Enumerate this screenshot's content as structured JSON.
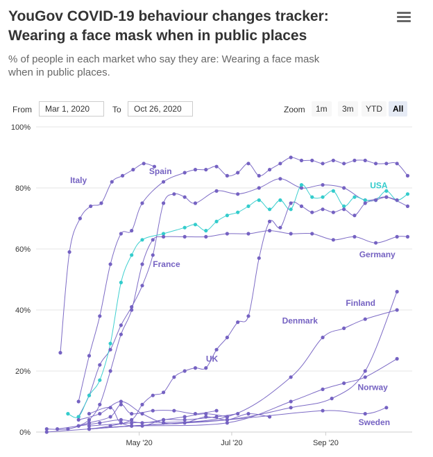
{
  "header": {
    "title_line1": "YouGov COVID-19 behaviour changes tracker:",
    "title_line2": "Wearing a face mask when in public places",
    "subtitle_line1": "% of people in each market who say they are: Wearing a face mask",
    "subtitle_line2": "when in public places."
  },
  "controls": {
    "from_label": "From",
    "from_value": "Mar 1, 2020",
    "to_label": "To",
    "to_value": "Oct 26, 2020",
    "zoom_label": "Zoom",
    "zoom_buttons": [
      "1m",
      "3m",
      "YTD",
      "All"
    ],
    "zoom_active": "All"
  },
  "colors": {
    "purple": "#7562c2",
    "teal": "#33cccc",
    "grid": "#e6e6e6"
  },
  "chart_data": {
    "type": "line",
    "title": "YouGov COVID-19 behaviour changes tracker: Wearing a face mask when in public places",
    "subtitle": "% of people in each market who say they are: Wearing a face mask when in public places.",
    "xlabel": "",
    "ylabel": "",
    "xlim": [
      "2020-02-23",
      "2020-10-28"
    ],
    "ylim": [
      0,
      100
    ],
    "y_ticks": [
      0,
      20,
      40,
      60,
      80,
      100
    ],
    "y_tick_labels": [
      "0%",
      "20%",
      "40%",
      "60%",
      "80%",
      "100%"
    ],
    "x_ticks": [
      "2020-05-01",
      "2020-07-01",
      "2020-09-01"
    ],
    "x_tick_labels": [
      "May '20",
      "Jul '20",
      "Sep '20"
    ],
    "grid": true,
    "legend": "inline labels",
    "series": [
      {
        "name": "Italy",
        "color": "#7562c2",
        "label_at": [
          "2020-03-22",
          82.5
        ],
        "points": [
          [
            "2020-03-10",
            26
          ],
          [
            "2020-03-16",
            59
          ],
          [
            "2020-03-23",
            70
          ],
          [
            "2020-03-30",
            74
          ],
          [
            "2020-04-06",
            75
          ],
          [
            "2020-04-13",
            82
          ],
          [
            "2020-04-20",
            84
          ],
          [
            "2020-04-27",
            86
          ],
          [
            "2020-05-04",
            88
          ],
          [
            "2020-05-11",
            87
          ]
        ]
      },
      {
        "name": "Spain",
        "color": "#7562c2",
        "label_at": [
          "2020-05-15",
          85.5
        ],
        "points": [
          [
            "2020-03-22",
            10
          ],
          [
            "2020-03-29",
            25
          ],
          [
            "2020-04-05",
            38
          ],
          [
            "2020-04-12",
            55
          ],
          [
            "2020-04-19",
            65
          ],
          [
            "2020-04-26",
            66
          ],
          [
            "2020-05-03",
            75
          ],
          [
            "2020-05-17",
            82
          ],
          [
            "2020-05-31",
            85
          ],
          [
            "2020-06-07",
            86
          ],
          [
            "2020-06-14",
            86
          ],
          [
            "2020-06-21",
            87
          ],
          [
            "2020-06-28",
            84
          ],
          [
            "2020-07-05",
            85
          ],
          [
            "2020-07-12",
            88
          ],
          [
            "2020-07-19",
            84
          ],
          [
            "2020-07-26",
            86
          ],
          [
            "2020-08-02",
            88
          ],
          [
            "2020-08-09",
            90
          ],
          [
            "2020-08-16",
            89
          ],
          [
            "2020-08-23",
            89
          ],
          [
            "2020-08-30",
            88
          ],
          [
            "2020-09-06",
            89
          ],
          [
            "2020-09-13",
            88
          ],
          [
            "2020-09-20",
            89
          ],
          [
            "2020-09-27",
            89
          ],
          [
            "2020-10-04",
            88
          ],
          [
            "2020-10-11",
            88
          ],
          [
            "2020-10-18",
            88
          ],
          [
            "2020-10-25",
            84
          ]
        ]
      },
      {
        "name": "France",
        "color": "#7562c2",
        "label_at": [
          "2020-05-19",
          55
        ],
        "points": [
          [
            "2020-03-22",
            5
          ],
          [
            "2020-03-29",
            12
          ],
          [
            "2020-04-05",
            22
          ],
          [
            "2020-04-12",
            27
          ],
          [
            "2020-04-19",
            35
          ],
          [
            "2020-04-26",
            41
          ],
          [
            "2020-05-03",
            48
          ],
          [
            "2020-05-10",
            58
          ],
          [
            "2020-05-17",
            75
          ],
          [
            "2020-05-24",
            78
          ],
          [
            "2020-05-31",
            77
          ],
          [
            "2020-06-07",
            75
          ],
          [
            "2020-06-21",
            79
          ],
          [
            "2020-07-05",
            78
          ],
          [
            "2020-07-19",
            80
          ],
          [
            "2020-08-02",
            83
          ],
          [
            "2020-08-16",
            80
          ],
          [
            "2020-08-30",
            81
          ],
          [
            "2020-09-13",
            80
          ],
          [
            "2020-09-27",
            76
          ],
          [
            "2020-10-11",
            77
          ],
          [
            "2020-10-25",
            74
          ]
        ]
      },
      {
        "name": "USA",
        "color": "#33cccc",
        "label_at": [
          "2020-10-06",
          80.8
        ],
        "points": [
          [
            "2020-03-15",
            6
          ],
          [
            "2020-03-22",
            5
          ],
          [
            "2020-03-29",
            12
          ],
          [
            "2020-04-05",
            17
          ],
          [
            "2020-04-12",
            29
          ],
          [
            "2020-04-19",
            49
          ],
          [
            "2020-04-26",
            58
          ],
          [
            "2020-05-03",
            63
          ],
          [
            "2020-05-17",
            65
          ],
          [
            "2020-05-31",
            67
          ],
          [
            "2020-06-07",
            68
          ],
          [
            "2020-06-14",
            66
          ],
          [
            "2020-06-21",
            69
          ],
          [
            "2020-06-28",
            71
          ],
          [
            "2020-07-05",
            72
          ],
          [
            "2020-07-12",
            74
          ],
          [
            "2020-07-19",
            76
          ],
          [
            "2020-07-26",
            73
          ],
          [
            "2020-08-02",
            76
          ],
          [
            "2020-08-09",
            73
          ],
          [
            "2020-08-16",
            81
          ],
          [
            "2020-08-23",
            77
          ],
          [
            "2020-08-30",
            77
          ],
          [
            "2020-09-06",
            79
          ],
          [
            "2020-09-13",
            74
          ],
          [
            "2020-09-20",
            77
          ],
          [
            "2020-09-27",
            76
          ],
          [
            "2020-10-04",
            76
          ],
          [
            "2020-10-11",
            79
          ],
          [
            "2020-10-18",
            76
          ],
          [
            "2020-10-25",
            78
          ]
        ]
      },
      {
        "name": "Germany",
        "color": "#7562c2",
        "label_at": [
          "2020-10-05",
          58.2
        ],
        "points": [
          [
            "2020-03-22",
            2
          ],
          [
            "2020-03-29",
            4
          ],
          [
            "2020-04-05",
            9
          ],
          [
            "2020-04-12",
            20
          ],
          [
            "2020-04-19",
            32
          ],
          [
            "2020-04-26",
            40
          ],
          [
            "2020-05-03",
            55
          ],
          [
            "2020-05-10",
            63
          ],
          [
            "2020-05-17",
            64
          ],
          [
            "2020-05-31",
            64
          ],
          [
            "2020-06-14",
            64
          ],
          [
            "2020-06-28",
            65
          ],
          [
            "2020-07-12",
            65
          ],
          [
            "2020-07-26",
            66
          ],
          [
            "2020-08-09",
            65
          ],
          [
            "2020-08-23",
            65
          ],
          [
            "2020-09-06",
            63
          ],
          [
            "2020-09-20",
            64
          ],
          [
            "2020-10-04",
            62
          ],
          [
            "2020-10-18",
            64
          ],
          [
            "2020-10-25",
            64
          ]
        ]
      },
      {
        "name": "UK",
        "color": "#7562c2",
        "label_at": [
          "2020-06-18",
          24
        ],
        "points": [
          [
            "2020-03-29",
            1
          ],
          [
            "2020-04-12",
            2
          ],
          [
            "2020-04-26",
            4
          ],
          [
            "2020-05-03",
            9
          ],
          [
            "2020-05-10",
            12
          ],
          [
            "2020-05-17",
            13
          ],
          [
            "2020-05-24",
            18
          ],
          [
            "2020-05-31",
            20
          ],
          [
            "2020-06-07",
            21
          ],
          [
            "2020-06-14",
            21
          ],
          [
            "2020-06-21",
            27
          ],
          [
            "2020-06-28",
            31
          ],
          [
            "2020-07-05",
            36
          ],
          [
            "2020-07-12",
            38
          ],
          [
            "2020-07-19",
            57
          ],
          [
            "2020-07-26",
            69
          ],
          [
            "2020-08-02",
            67
          ],
          [
            "2020-08-09",
            75
          ],
          [
            "2020-08-16",
            74
          ],
          [
            "2020-08-23",
            72
          ],
          [
            "2020-08-30",
            73
          ],
          [
            "2020-09-06",
            72
          ],
          [
            "2020-09-13",
            73
          ],
          [
            "2020-09-20",
            71
          ],
          [
            "2020-09-27",
            75
          ],
          [
            "2020-10-04",
            76
          ],
          [
            "2020-10-11",
            77
          ],
          [
            "2020-10-18",
            76
          ]
        ]
      },
      {
        "name": "Finland",
        "color": "#7562c2",
        "label_at": [
          "2020-09-24",
          42.3
        ],
        "points": [
          [
            "2020-03-29",
            1
          ],
          [
            "2020-04-26",
            2
          ],
          [
            "2020-06-28",
            4
          ],
          [
            "2020-08-09",
            8
          ],
          [
            "2020-09-05",
            11
          ],
          [
            "2020-09-27",
            20
          ],
          [
            "2020-10-18",
            46
          ]
        ]
      },
      {
        "name": "Denmark",
        "color": "#7562c2",
        "label_at": [
          "2020-08-15",
          36.5
        ],
        "points": [
          [
            "2020-03-29",
            2
          ],
          [
            "2020-04-26",
            3
          ],
          [
            "2020-06-28",
            5
          ],
          [
            "2020-08-09",
            18
          ],
          [
            "2020-08-30",
            31
          ],
          [
            "2020-09-13",
            34
          ],
          [
            "2020-09-27",
            37
          ],
          [
            "2020-10-18",
            40
          ]
        ]
      },
      {
        "name": "Norway",
        "color": "#7562c2",
        "label_at": [
          "2020-10-02",
          14.7
        ],
        "points": [
          [
            "2020-03-29",
            1
          ],
          [
            "2020-04-26",
            2
          ],
          [
            "2020-06-28",
            3
          ],
          [
            "2020-08-09",
            10
          ],
          [
            "2020-08-30",
            14
          ],
          [
            "2020-09-13",
            16
          ],
          [
            "2020-09-27",
            18
          ],
          [
            "2020-10-18",
            24
          ]
        ]
      },
      {
        "name": "Sweden",
        "color": "#7562c2",
        "label_at": [
          "2020-10-03",
          3.2
        ],
        "points": [
          [
            "2020-03-01",
            0
          ],
          [
            "2020-03-29",
            1
          ],
          [
            "2020-04-26",
            2
          ],
          [
            "2020-06-28",
            4
          ],
          [
            "2020-08-30",
            7
          ],
          [
            "2020-09-27",
            6
          ],
          [
            "2020-10-11",
            8
          ]
        ]
      },
      {
        "name": "",
        "color": "#7562c2",
        "points": [
          [
            "2020-03-01",
            1
          ],
          [
            "2020-03-15",
            1
          ],
          [
            "2020-03-29",
            3
          ],
          [
            "2020-04-12",
            5
          ],
          [
            "2020-04-19",
            9
          ],
          [
            "2020-04-26",
            6
          ],
          [
            "2020-05-10",
            7
          ],
          [
            "2020-05-24",
            7
          ],
          [
            "2020-06-07",
            6
          ],
          [
            "2020-06-21",
            7
          ]
        ]
      },
      {
        "name": "",
        "color": "#7562c2",
        "points": [
          [
            "2020-03-08",
            1
          ],
          [
            "2020-03-22",
            2
          ],
          [
            "2020-04-05",
            3
          ],
          [
            "2020-04-19",
            4
          ],
          [
            "2020-05-03",
            3
          ],
          [
            "2020-05-17",
            4
          ],
          [
            "2020-05-31",
            5
          ],
          [
            "2020-06-14",
            6
          ],
          [
            "2020-06-28",
            5
          ]
        ]
      },
      {
        "name": "",
        "color": "#7562c2",
        "points": [
          [
            "2020-03-22",
            4
          ],
          [
            "2020-04-05",
            6
          ],
          [
            "2020-04-19",
            10
          ],
          [
            "2020-05-03",
            6
          ],
          [
            "2020-05-17",
            3
          ],
          [
            "2020-05-31",
            3
          ],
          [
            "2020-06-14",
            5
          ],
          [
            "2020-06-28",
            4
          ],
          [
            "2020-07-12",
            6
          ],
          [
            "2020-07-26",
            5
          ]
        ]
      },
      {
        "name": "",
        "color": "#7562c2",
        "points": [
          [
            "2020-03-29",
            6
          ],
          [
            "2020-04-12",
            8
          ],
          [
            "2020-04-19",
            3
          ],
          [
            "2020-05-03",
            2
          ],
          [
            "2020-05-17",
            4
          ],
          [
            "2020-05-31",
            4
          ],
          [
            "2020-06-21",
            5
          ],
          [
            "2020-07-05",
            6
          ]
        ]
      }
    ]
  }
}
